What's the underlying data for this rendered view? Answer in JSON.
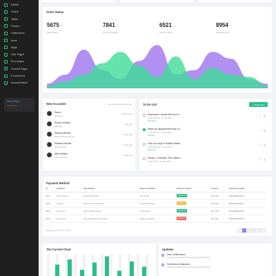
{
  "sidebar": {
    "items": [
      {
        "label": "Editors",
        "icon": "edit-icon"
      },
      {
        "label": "Charts",
        "icon": "chart-icon"
      },
      {
        "label": "Tables",
        "icon": "table-icon"
      },
      {
        "label": "Forums",
        "icon": "forum-icon"
      },
      {
        "label": "Notifications",
        "icon": "bell-icon"
      },
      {
        "label": "Icons",
        "icon": "star-icon"
      },
      {
        "label": "Maps",
        "icon": "map-icon"
      },
      {
        "label": "User Pages",
        "icon": "user-icon"
      },
      {
        "label": "Error pages",
        "icon": "warning-icon"
      },
      {
        "label": "General Pages",
        "icon": "file-icon"
      },
      {
        "label": "E-commerce",
        "icon": "cart-icon"
      },
      {
        "label": "Documentation",
        "icon": "book-icon"
      }
    ],
    "help": {
      "title": "Need Help ?",
      "text": "Contact us"
    }
  },
  "order_status": {
    "title": "Order Status",
    "stats": [
      {
        "value": "5675",
        "label": "Daily Orders",
        "trend": "up"
      },
      {
        "value": "7841",
        "label": "Daily Completed",
        "trend": "up"
      },
      {
        "value": "6521",
        "label": "Monthly Sales",
        "trend": "down"
      },
      {
        "value": "8954",
        "label": "Total Revenue",
        "trend": "up"
      }
    ]
  },
  "chart_data": {
    "type": "area",
    "x": [
      0,
      1,
      2,
      3,
      4,
      5,
      6,
      7,
      8,
      9,
      10,
      11,
      12
    ],
    "series": [
      {
        "values": [
          10,
          30,
          85,
          40,
          20,
          60,
          95,
          30,
          40,
          80,
          65,
          20,
          10
        ],
        "color": "#a37cf0"
      },
      {
        "values": [
          5,
          15,
          30,
          55,
          80,
          50,
          25,
          70,
          20,
          45,
          30,
          25,
          5
        ],
        "color": "#3ddc97"
      }
    ]
  },
  "accounts": {
    "title": "New Accounts",
    "meta": "Last activity was 2 days ago",
    "items": [
      {
        "name": "David",
        "role": "Developer",
        "time": "35 mins ago"
      },
      {
        "name": "Sheila Johnson",
        "role": "Manager",
        "time": "1 day ago"
      },
      {
        "name": "Rashmi Mitchel",
        "role": "Business Development",
        "time": "2 days ago"
      },
      {
        "name": "Edward Fletcher",
        "role": "Web Designer",
        "time": "3 days ago"
      },
      {
        "name": "Allen Russel",
        "role": "Photo Manager",
        "time": "5 days ago"
      }
    ]
  },
  "todo": {
    "title": "To Do List",
    "button": "+ Create New",
    "items": [
      {
        "title": "Employee I would like you to ...",
        "date": "12:00 PM Mon, 16 Jan 2019",
        "tag": "Approved",
        "done": false
      },
      {
        "title": "Make an appointment with Dr...",
        "date": "12:00 PM Tue, 15 Jan 2019",
        "tag": "Pending",
        "done": true
      },
      {
        "title": "Visit our boys in Battle Estate...",
        "date": "12:00 PM Wed, 14 Jan 2019",
        "tag": "Approved",
        "done": false
      },
      {
        "title": "Please: Checkout This Attach...",
        "date": "12:00 PM Fri, 12 Jan 2019",
        "tag": "",
        "done": false
      }
    ]
  },
  "payment": {
    "title": "Payment Method",
    "headers": [
      "Id",
      "Assignee",
      "Task Details",
      "Payment Method",
      "Payment Status",
      "Amount",
      "Tracking Number"
    ],
    "rows": [
      {
        "id": "#001",
        "assignee": "Victor Jones",
        "task": "Support Software",
        "method": "Credit card",
        "status": "Approved",
        "status_color": "#2bbf8a",
        "amount": "$12,000",
        "tracking": "8890888000000"
      },
      {
        "id": "#002",
        "assignee": "Jane D.",
        "task": "New web site redesign",
        "method": "Internet Banking",
        "status": "Pending",
        "status_color": "#f7b731",
        "amount": "$12,000",
        "tracking": "8890888000001"
      },
      {
        "id": "#003",
        "assignee": "Thomas T.",
        "task": "New website design",
        "method": "Credit card",
        "status": "Approved",
        "status_color": "#2bbf8a",
        "amount": "$12,000",
        "tracking": "8890888000002"
      },
      {
        "id": "#004",
        "assignee": "Lucy Hew",
        "task": "New admission in website",
        "method": "Cash on delivery",
        "status": "Rejected",
        "status_color": "#ff5b5b",
        "amount": "$12,000",
        "tracking": "8890888000003"
      }
    ],
    "footer": "Showing 1 to 10 of 20 entries",
    "pages": [
      "<",
      "1",
      "2",
      "3",
      "4",
      ">"
    ]
  },
  "current_chart": {
    "title": "The Current Chart",
    "values": [
      55,
      80,
      30,
      65,
      95,
      25,
      70,
      45
    ]
  },
  "updates": {
    "title": "Updates",
    "items": [
      {
        "title": "User confirmation",
        "text": "Lorem ipsum dolor sit amet tongue dei right forthe.com",
        "time": "20 minutes ago"
      },
      {
        "title": "Continuous evaluation",
        "text": "Lorem ipsum dolor sit amet tongue dei right forthe.com",
        "time": "2 hours ago"
      }
    ]
  }
}
